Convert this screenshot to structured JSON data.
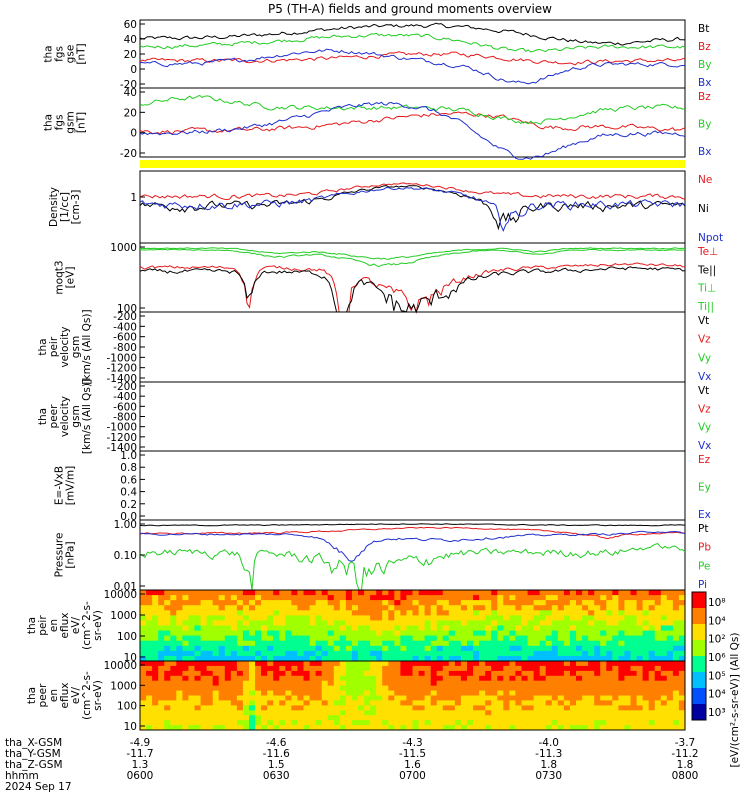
{
  "chart_data": {
    "type": "line",
    "title": "P5 (TH-A) fields and ground moments overview",
    "date_label": "2024 Sep 17",
    "colors": {
      "black": "#000000",
      "red": "#e41a1c",
      "green": "#22cc22",
      "blue": "#1f2fcc",
      "yellow": "#ffff00"
    },
    "panels": [
      {
        "id": "fgs-gse",
        "ylabel": [
          "tha",
          "fgs",
          "gse",
          "[nT]"
        ],
        "ylim": [
          -20,
          60
        ],
        "yticks": [
          "60",
          "40",
          "20",
          "0",
          "-20"
        ],
        "series": [
          {
            "name": "Bt",
            "color": "#000000"
          },
          {
            "name": "Bz",
            "color": "#e41a1c"
          },
          {
            "name": "By",
            "color": "#22cc22"
          },
          {
            "name": "Bx",
            "color": "#1f2fcc"
          }
        ]
      },
      {
        "id": "fgs-gsm",
        "ylabel": [
          "tha",
          "fgs",
          "gsm",
          "[nT]"
        ],
        "ylim": [
          -30,
          40
        ],
        "yticks": [
          "40",
          "20",
          "0",
          "-20"
        ],
        "series": [
          {
            "name": "Bz",
            "color": "#e41a1c"
          },
          {
            "name": "By",
            "color": "#22cc22"
          },
          {
            "name": "Bx",
            "color": "#1f2fcc"
          }
        ]
      },
      {
        "id": "density",
        "ylabel": [
          "Density",
          "[1/cc]",
          "[cm-3]"
        ],
        "ylim": [
          0.05,
          5
        ],
        "yticks": [
          "1"
        ],
        "series": [
          {
            "name": "Ne",
            "color": "#e41a1c"
          },
          {
            "name": "Ni",
            "color": "#000000"
          },
          {
            "name": "Npot",
            "color": "#1f2fcc"
          }
        ]
      },
      {
        "id": "temp",
        "ylabel": [
          "moqt3",
          "[eV]"
        ],
        "ylim": [
          50,
          3000
        ],
        "yticks": [
          "1000",
          "100"
        ],
        "series": [
          {
            "name": "Te⊥",
            "color": "#e41a1c"
          },
          {
            "name": "Te||",
            "color": "#000000"
          },
          {
            "name": "Ti⊥",
            "color": "#22cc22"
          },
          {
            "name": "Ti||",
            "color": "#22cc22"
          }
        ]
      },
      {
        "id": "peir-velocity",
        "ylabel": [
          "tha",
          "peir",
          "velocity",
          "gsm",
          "[km/s (All Qs)]"
        ],
        "ylim": [
          -1400,
          0
        ],
        "yticks": [
          "-200",
          "-400",
          "-600",
          "-800",
          "-1000",
          "-1200",
          "-1400"
        ],
        "series": [
          {
            "name": "Vt",
            "color": "#000000"
          },
          {
            "name": "Vz",
            "color": "#e41a1c"
          },
          {
            "name": "Vy",
            "color": "#22cc22"
          },
          {
            "name": "Vx",
            "color": "#1f2fcc"
          }
        ]
      },
      {
        "id": "peer-velocity",
        "ylabel": [
          "tha",
          "peer",
          "velocity",
          "gsm",
          "[km/s (All Qs)]"
        ],
        "ylim": [
          -1400,
          0
        ],
        "yticks": [
          "-200",
          "-400",
          "-600",
          "-800",
          "-1000",
          "-1200",
          "-1400"
        ],
        "series": [
          {
            "name": "Vt",
            "color": "#000000"
          },
          {
            "name": "Vz",
            "color": "#e41a1c"
          },
          {
            "name": "Vy",
            "color": "#22cc22"
          },
          {
            "name": "Vx",
            "color": "#1f2fcc"
          }
        ]
      },
      {
        "id": "efield",
        "ylabel": [
          "E=-VxB",
          "[mV/m]"
        ],
        "ylim": [
          0,
          1
        ],
        "yticks": [
          "1.0",
          "0.8",
          "0.6",
          "0.4",
          "0.2",
          "0.0"
        ],
        "series": [
          {
            "name": "Ez",
            "color": "#e41a1c"
          },
          {
            "name": "Ey",
            "color": "#22cc22"
          },
          {
            "name": "Ex",
            "color": "#1f2fcc"
          }
        ]
      },
      {
        "id": "pressure",
        "ylabel": [
          "Pressure",
          "[nPa]"
        ],
        "ylim": [
          0.005,
          1.3
        ],
        "yticks": [
          "1.00",
          "0.10",
          "0.01"
        ],
        "series": [
          {
            "name": "Pt",
            "color": "#000000"
          },
          {
            "name": "Pb",
            "color": "#e41a1c"
          },
          {
            "name": "Pe",
            "color": "#22cc22"
          },
          {
            "name": "Pi",
            "color": "#1f2fcc"
          }
        ]
      },
      {
        "id": "peir-eflux",
        "type": "heatmap",
        "ylabel": [
          "tha",
          "peir",
          "en",
          "eflux",
          "eV/",
          "(cm^2-s-",
          "sr-eV)"
        ],
        "ylim": [
          5,
          25000
        ],
        "yticks": [
          "10000",
          "1000",
          "100",
          "10"
        ]
      },
      {
        "id": "peer-eflux",
        "type": "heatmap",
        "ylabel": [
          "tha",
          "peer",
          "en",
          "eflux",
          "eV/",
          "(cm^2-s-",
          "sr-eV)"
        ],
        "ylim": [
          5,
          25000
        ],
        "yticks": [
          "10000",
          "1000",
          "100",
          "10"
        ]
      }
    ],
    "colorbar": {
      "label": "[eV/(cm²-s-sr-eV)] (All Qs)",
      "ticks": [
        "10⁸",
        "10⁴",
        "10²",
        "10⁶",
        "10⁵",
        "10⁴",
        "10³"
      ]
    },
    "x_axis": {
      "rows": [
        {
          "label": "tha_X-GSM",
          "values": [
            "-4.9",
            "-4.6",
            "-4.3",
            "-4.0",
            "-3.7"
          ]
        },
        {
          "label": "tha_Y-GSM",
          "values": [
            "-11.7",
            "-11.6",
            "-11.5",
            "-11.3",
            "-11.2"
          ]
        },
        {
          "label": "tha_Z-GSM",
          "values": [
            "1.3",
            "1.5",
            "1.6",
            "1.8",
            "1.8"
          ]
        },
        {
          "label": "hhmm",
          "values": [
            "0600",
            "0630",
            "0700",
            "0730",
            "0800"
          ]
        }
      ],
      "x": [
        "06:00",
        "06:30",
        "07:00",
        "07:30",
        "08:00"
      ]
    }
  }
}
